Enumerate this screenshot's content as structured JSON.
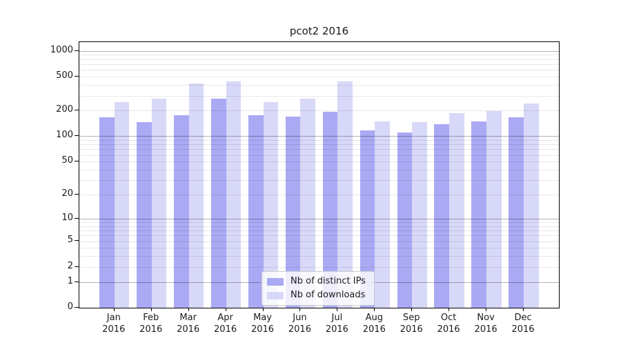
{
  "chart_data": {
    "type": "bar",
    "title": "pcot2 2016",
    "year": "2016",
    "categories": [
      "Jan",
      "Feb",
      "Mar",
      "Apr",
      "May",
      "Jun",
      "Jul",
      "Aug",
      "Sep",
      "Oct",
      "Nov",
      "Dec"
    ],
    "series": [
      {
        "name": "Nb of distinct IPs",
        "color": "#a9a9f4",
        "values": [
          168,
          147,
          176,
          275,
          178,
          171,
          193,
          118,
          110,
          139,
          149,
          166
        ]
      },
      {
        "name": "Nb of downloads",
        "color": "#d8d8f8",
        "values": [
          252,
          275,
          414,
          442,
          250,
          277,
          442,
          149,
          147,
          188,
          197,
          240
        ]
      }
    ],
    "y_scale": "log1p",
    "y_ticks": [
      0,
      1,
      2,
      5,
      10,
      20,
      50,
      100,
      200,
      500,
      1000
    ],
    "y_major_gridlines": [
      1,
      10,
      100,
      1000
    ],
    "ylim": [
      0,
      1268
    ],
    "grid": true,
    "legend_position": "lower-center",
    "colors": {
      "background": "#ffffff",
      "spine": "#000000",
      "text": "#1a1a1a",
      "minor_grid": "#e8e8e8",
      "major_grid": "#b3b3b3",
      "legend_border": "#cccccc"
    }
  }
}
